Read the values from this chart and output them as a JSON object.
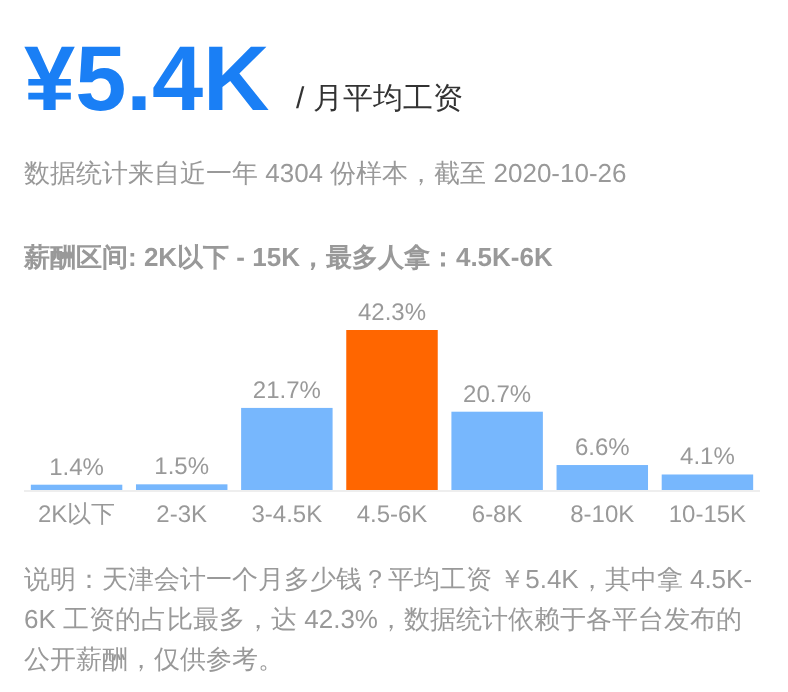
{
  "chart_data": {
    "type": "bar",
    "title": "¥5.4K",
    "subtitle": "/ 月平均工资",
    "annotations": [
      "数据统计来自近一年 4304 份样本，截至 2020-10-26",
      "薪酬区间: 2K以下 - 15K，最多人拿：4.5K-6K",
      "说明：天津会计一个月多少钱？平均工资 ￥5.4K，其中拿 4.5K-6K 工资的占比最多，达 42.3%，数据统计依赖于各平台发布的公开薪酬，仅供参考。"
    ],
    "categories": [
      "2K以下",
      "2-3K",
      "3-4.5K",
      "4.5-6K",
      "6-8K",
      "8-10K",
      "10-15K"
    ],
    "values": [
      1.4,
      1.5,
      21.7,
      42.3,
      20.7,
      6.6,
      4.1
    ],
    "value_labels": [
      "1.4%",
      "1.5%",
      "21.7%",
      "42.3%",
      "20.7%",
      "6.6%",
      "4.1%"
    ],
    "colors": [
      "#77b7fd",
      "#77b7fd",
      "#77b7fd",
      "#ff6600",
      "#77b7fd",
      "#77b7fd",
      "#77b7fd"
    ]
  }
}
